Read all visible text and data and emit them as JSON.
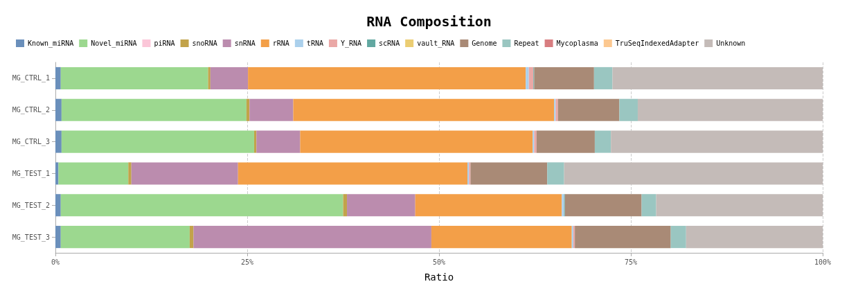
{
  "chart_data": {
    "type": "bar",
    "orientation": "horizontal",
    "stacked": true,
    "title": "RNA Composition",
    "xlabel": "Ratio",
    "categories": [
      "MG_CTRL_1",
      "MG_CTRL_2",
      "MG_CTRL_3",
      "MG_TEST_1",
      "MG_TEST_2",
      "MG_TEST_3"
    ],
    "series": [
      {
        "name": "Known_miRNA",
        "color": "#6a8fbb",
        "values": [
          0.7,
          0.8,
          0.8,
          0.4,
          0.7,
          0.7
        ]
      },
      {
        "name": "Novel_miRNA",
        "color": "#9cd88f",
        "values": [
          19.2,
          24.1,
          25.1,
          9.1,
          36.8,
          16.8
        ]
      },
      {
        "name": "piRNA",
        "color": "#fbc6d8",
        "values": [
          0,
          0,
          0,
          0,
          0,
          0
        ]
      },
      {
        "name": "snoRNA",
        "color": "#c2a34a",
        "values": [
          0.3,
          0.4,
          0.3,
          0.4,
          0.5,
          0.5
        ]
      },
      {
        "name": "snRNA",
        "color": "#bb8cae",
        "values": [
          4.9,
          5.7,
          5.7,
          13.9,
          8.9,
          31.0
        ]
      },
      {
        "name": "rRNA",
        "color": "#f39f48",
        "values": [
          36.2,
          34.0,
          30.3,
          29.9,
          19.1,
          18.3
        ]
      },
      {
        "name": "tRNA",
        "color": "#abd0ec",
        "values": [
          0.4,
          0.2,
          0.2,
          0.2,
          0.3,
          0.2
        ]
      },
      {
        "name": "Y_RNA",
        "color": "#eaa8a6",
        "values": [
          0.6,
          0.3,
          0.3,
          0.2,
          null,
          0.2
        ]
      },
      {
        "name": "scRNA",
        "color": "#62a8a1",
        "values": [
          0.1,
          0,
          0,
          0,
          0.1,
          0
        ]
      },
      {
        "name": "vault_RNA",
        "color": "#ebcd73",
        "values": [
          0,
          0,
          0,
          0,
          0,
          0
        ]
      },
      {
        "name": "Genome",
        "color": "#a98a76",
        "values": [
          7.8,
          8.0,
          7.6,
          10.0,
          10.0,
          12.5
        ]
      },
      {
        "name": "Repeat",
        "color": "#9ac6c1",
        "values": [
          2.4,
          2.4,
          2.1,
          2.2,
          1.9,
          2.0
        ]
      },
      {
        "name": "Mycoplasma",
        "color": "#d87d80",
        "values": [
          0,
          0,
          0,
          0,
          0,
          0
        ]
      },
      {
        "name": "TruSeqIndexedAdapter",
        "color": "#fcc890",
        "values": [
          0,
          0,
          0,
          0,
          0,
          0
        ]
      },
      {
        "name": "Unknown",
        "color": "#c4bbb8",
        "values": [
          27.4,
          24.1,
          27.6,
          33.7,
          21.7,
          17.8
        ]
      }
    ],
    "xlim": [
      0,
      100
    ],
    "xticks": [
      {
        "value": 0,
        "label": "0%"
      },
      {
        "value": 25,
        "label": "25%"
      },
      {
        "value": 50,
        "label": "50%"
      },
      {
        "value": 75,
        "label": "75%"
      },
      {
        "value": 100,
        "label": "100%"
      }
    ],
    "grid": "x",
    "legend": "top"
  }
}
